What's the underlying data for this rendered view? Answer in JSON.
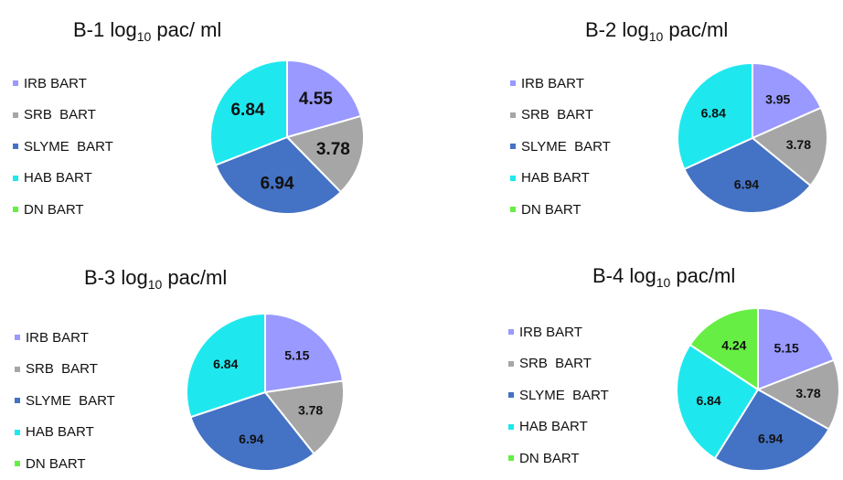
{
  "legend_labels": [
    "IRB BART",
    "SRB  BART",
    "SLYME  BART",
    "HAB BART",
    "DN BART"
  ],
  "series_colors": [
    "#9999ff",
    "#a6a6a6",
    "#4472c4",
    "#1ee8ee",
    "#66ee44"
  ],
  "chart_data": [
    {
      "type": "pie",
      "title": {
        "main": "B-1 log",
        "sub": "10",
        "rest": " pac/ ml"
      },
      "labels": [
        "IRB BART",
        "SRB  BART",
        "SLYME  BART",
        "HAB BART",
        "DN BART"
      ],
      "values": [
        4.55,
        3.78,
        6.94,
        6.84,
        0
      ],
      "data_labels": [
        "4.55",
        "3.78",
        "6.94",
        "6.84",
        ""
      ]
    },
    {
      "type": "pie",
      "title": {
        "main": "B-2 log",
        "sub": "10",
        "rest": "  pac/ml"
      },
      "labels": [
        "IRB BART",
        "SRB  BART",
        "SLYME  BART",
        "HAB BART",
        "DN BART"
      ],
      "values": [
        3.95,
        3.78,
        6.94,
        6.84,
        0
      ],
      "data_labels": [
        "3.95",
        "3.78",
        "6.94",
        "6.84",
        ""
      ]
    },
    {
      "type": "pie",
      "title": {
        "main": "B-3 log",
        "sub": "10",
        "rest": " pac/ml"
      },
      "labels": [
        "IRB BART",
        "SRB  BART",
        "SLYME  BART",
        "HAB BART",
        "DN BART"
      ],
      "values": [
        5.15,
        3.78,
        6.94,
        6.84,
        0
      ],
      "data_labels": [
        "5.15",
        "3.78",
        "6.94",
        "6.84",
        ""
      ]
    },
    {
      "type": "pie",
      "title": {
        "main": "B-4 log",
        "sub": "10",
        "rest": " pac/ml"
      },
      "labels": [
        "IRB BART",
        "SRB  BART",
        "SLYME  BART",
        "HAB BART",
        "DN BART"
      ],
      "values": [
        5.15,
        3.78,
        6.94,
        6.84,
        4.24
      ],
      "data_labels": [
        "5.15",
        "3.78",
        "6.94",
        "6.84",
        "4.24"
      ]
    }
  ]
}
